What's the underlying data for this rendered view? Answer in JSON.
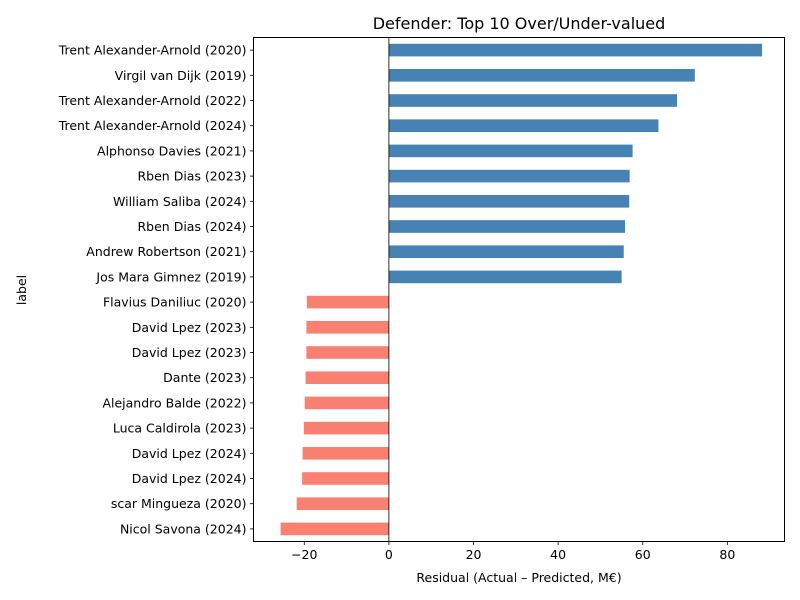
{
  "chart_data": {
    "type": "bar",
    "orientation": "horizontal",
    "title": "Defender: Top 10 Over/Under-valued",
    "xlabel": "Residual (Actual – Predicted, M€)",
    "ylabel": "label",
    "xlim": [
      -32,
      93.5
    ],
    "xticks": [
      -20,
      0,
      20,
      40,
      60,
      80
    ],
    "xtick_labels": [
      "−20",
      "0",
      "20",
      "40",
      "60",
      "80"
    ],
    "grid": false,
    "legend": "none",
    "colors": {
      "positive": "#4682b4",
      "negative": "#fa8072",
      "zero_line": "#000000"
    },
    "categories": [
      "Trent Alexander-Arnold (2020)",
      "Virgil van Dijk (2019)",
      "Trent Alexander-Arnold (2022)",
      "Trent Alexander-Arnold (2024)",
      "Alphonso Davies (2021)",
      "Rben Dias (2023)",
      "William Saliba (2024)",
      "Rben Dias (2024)",
      "Andrew Robertson (2021)",
      "Jos Mara Gimnez (2019)",
      "Flavius Daniliuc (2020)",
      "David Lpez (2023)",
      "David Lpez (2023)",
      "Dante (2023)",
      "Alejandro Balde (2022)",
      "Luca Caldirola (2023)",
      "David Lpez (2024)",
      "David Lpez (2024)",
      "scar Mingueza (2020)",
      "Nicol Savona (2024)"
    ],
    "values": [
      88.2,
      72.3,
      68.1,
      63.7,
      57.6,
      56.9,
      56.8,
      55.8,
      55.5,
      55.0,
      -19.4,
      -19.5,
      -19.5,
      -19.7,
      -19.9,
      -20.1,
      -20.4,
      -20.5,
      -21.8,
      -25.6
    ]
  }
}
